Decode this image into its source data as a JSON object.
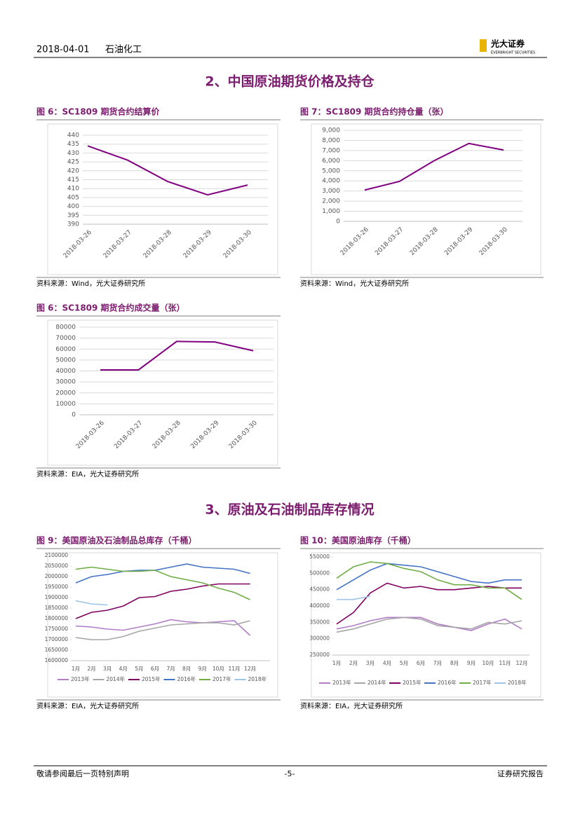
{
  "header": {
    "date": "2018-04-01",
    "industry": "石油化工",
    "logo_cn": "光大证券",
    "logo_en": "EVERBRIGHT SECURITIES"
  },
  "sections": [
    "2、中国原油期货价格及持仓",
    "3、原油及石油制品库存情况"
  ],
  "chart_data": [
    {
      "type": "line",
      "title": "图 6：SC1809 期货合约结算价",
      "source": "资料来源：Wind，光大证券研究所",
      "categories": [
        "2018-03-26",
        "2018-03-27",
        "2018-03-28",
        "2018-03-29",
        "2018-03-30"
      ],
      "values": [
        434,
        426,
        414,
        406.5,
        412
      ],
      "color": "#800080",
      "ylim": [
        390,
        440
      ],
      "yticks": [
        390,
        395,
        400,
        405,
        410,
        415,
        420,
        425,
        430,
        435,
        440
      ],
      "grid": true
    },
    {
      "type": "line",
      "title": "图 7：SC1809 期货合约持仓量（张）",
      "source": "资料来源：Wind，光大证券研究所",
      "categories": [
        "2018-03-26",
        "2018-03-27",
        "2018-03-28",
        "2018-03-29",
        "2018-03-30"
      ],
      "values": [
        3100,
        3950,
        6000,
        7700,
        7050
      ],
      "color": "#800080",
      "ylim": [
        0,
        9000
      ],
      "yticks": [
        0,
        {
          "value": 1000,
          "label": "1,000"
        },
        {
          "value": 2000,
          "label": "2,000"
        },
        {
          "value": 3000,
          "label": "3,000"
        },
        {
          "value": 4000,
          "label": "4,000"
        },
        {
          "value": 5000,
          "label": "5,000"
        },
        {
          "value": 6000,
          "label": "6,000"
        },
        {
          "value": 7000,
          "label": "7,000"
        },
        {
          "value": 8000,
          "label": "8,000"
        },
        {
          "value": 9000,
          "label": "9,000"
        }
      ],
      "grid": true
    },
    {
      "type": "line",
      "title": "图 6：SC1809 期货合约成交量（张）",
      "source": "资料来源：EIA，光大证券研究所",
      "categories": [
        "2018-03-26",
        "2018-03-27",
        "2018-03-28",
        "2018-03-29",
        "2018-03-30"
      ],
      "values": [
        41000,
        41000,
        67000,
        66500,
        58500
      ],
      "color": "#800080",
      "ylim": [
        0,
        80000
      ],
      "yticks": [
        0,
        10000,
        20000,
        30000,
        40000,
        50000,
        60000,
        70000,
        80000
      ],
      "grid": true
    },
    {
      "type": "line",
      "title": "图 9：美国原油及石油制品总库存（千桶）",
      "source": "资料来源：EIA，光大证券研究所",
      "categories": [
        "1月",
        "2月",
        "3月",
        "4月",
        "5月",
        "6月",
        "7月",
        "8月",
        "9月",
        "10月",
        "11月",
        "12月"
      ],
      "series": [
        {
          "name": "2013年",
          "color": "#b27cc8",
          "values": [
            1765000,
            1760000,
            1750000,
            1745000,
            1760000,
            1775000,
            1795000,
            1785000,
            1780000,
            1785000,
            1790000,
            1720000
          ]
        },
        {
          "name": "2014年",
          "color": "#a6a6a6",
          "values": [
            1710000,
            1700000,
            1700000,
            1715000,
            1740000,
            1755000,
            1770000,
            1775000,
            1780000,
            1780000,
            1770000,
            1790000
          ]
        },
        {
          "name": "2015年",
          "color": "#800060",
          "values": [
            1800000,
            1830000,
            1840000,
            1860000,
            1900000,
            1905000,
            1930000,
            1940000,
            1955000,
            1965000,
            1965000,
            1965000
          ]
        },
        {
          "name": "2016年",
          "color": "#4472c4",
          "values": [
            1970000,
            2000000,
            2010000,
            2025000,
            2030000,
            2030000,
            2045000,
            2060000,
            2045000,
            2040000,
            2035000,
            2015000
          ]
        },
        {
          "name": "2017年",
          "color": "#70ad47",
          "values": [
            2035000,
            2045000,
            2035000,
            2025000,
            2025000,
            2030000,
            2000000,
            1985000,
            1970000,
            1945000,
            1925000,
            1890000
          ]
        },
        {
          "name": "2018年",
          "color": "#9dc3e6",
          "values": [
            1885000,
            1870000,
            1865000,
            null,
            null,
            null,
            null,
            null,
            null,
            null,
            null,
            null
          ]
        }
      ],
      "ylim": [
        1600000,
        2100000
      ],
      "yticks": [
        1600000,
        1650000,
        1700000,
        1750000,
        1800000,
        1850000,
        1900000,
        1950000,
        2000000,
        2050000,
        2100000
      ],
      "grid": false,
      "legend": "bottom"
    },
    {
      "type": "line",
      "title": "图 10：美国原油库存（千桶）",
      "source": "资料来源：EIA，光大证券研究所",
      "categories": [
        "1月",
        "2月",
        "3月",
        "4月",
        "5月",
        "6月",
        "7月",
        "8月",
        "9月",
        "10月",
        "11月",
        "12月"
      ],
      "series": [
        {
          "name": "2013年",
          "color": "#b27cc8",
          "values": [
            330000,
            340000,
            355000,
            365000,
            365000,
            365000,
            345000,
            335000,
            325000,
            345000,
            360000,
            330000
          ]
        },
        {
          "name": "2014年",
          "color": "#a6a6a6",
          "values": [
            320000,
            330000,
            345000,
            360000,
            365000,
            360000,
            340000,
            335000,
            330000,
            350000,
            345000,
            355000
          ]
        },
        {
          "name": "2015年",
          "color": "#800060",
          "values": [
            345000,
            380000,
            440000,
            470000,
            455000,
            460000,
            450000,
            450000,
            455000,
            460000,
            455000,
            455000
          ]
        },
        {
          "name": "2016年",
          "color": "#4472c4",
          "values": [
            450000,
            480000,
            510000,
            530000,
            525000,
            520000,
            505000,
            490000,
            475000,
            470000,
            480000,
            480000
          ]
        },
        {
          "name": "2017年",
          "color": "#70ad47",
          "values": [
            485000,
            520000,
            535000,
            530000,
            515000,
            505000,
            480000,
            465000,
            465000,
            455000,
            455000,
            420000
          ]
        },
        {
          "name": "2018年",
          "color": "#9dc3e6",
          "values": [
            420000,
            420000,
            430000,
            null,
            null,
            null,
            null,
            null,
            null,
            null,
            null,
            null
          ]
        }
      ],
      "ylim": [
        250000,
        550000
      ],
      "yticks": [
        250000,
        300000,
        350000,
        400000,
        450000,
        500000,
        550000
      ],
      "grid": false,
      "legend": "bottom"
    }
  ],
  "footer": {
    "left": "敬请参阅最后一页特别声明",
    "page": "-5-",
    "right": "证券研究报告"
  }
}
